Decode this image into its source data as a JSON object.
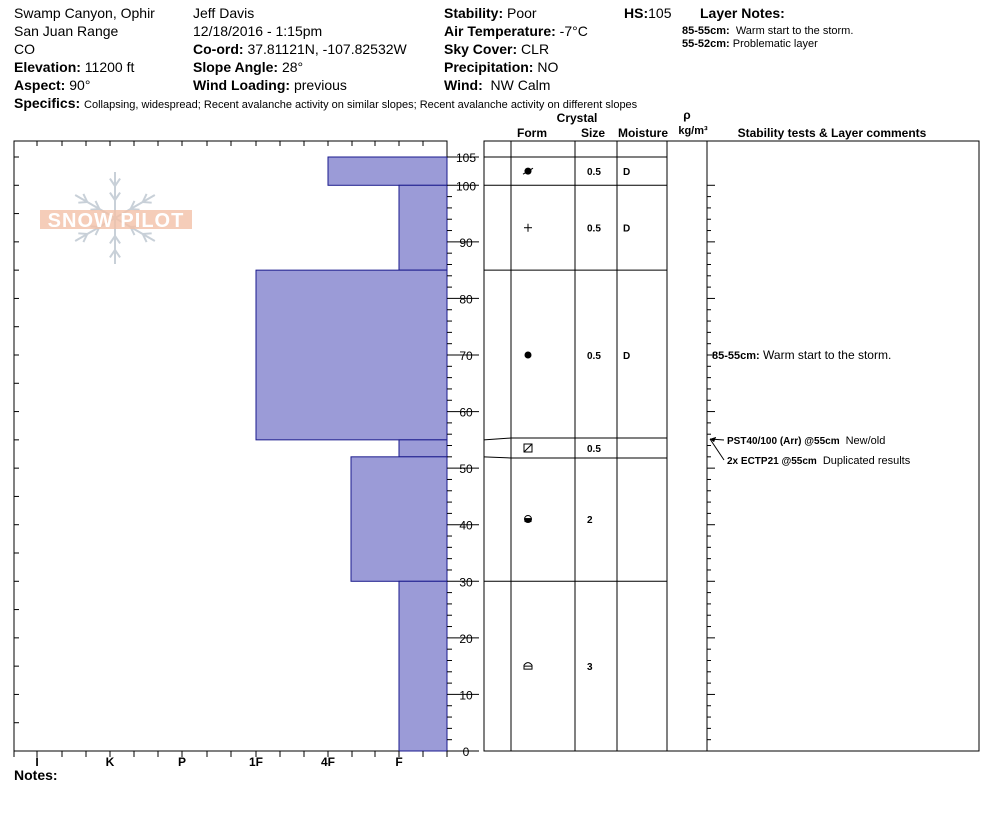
{
  "site": {
    "location": "Swamp Canyon, Ophir",
    "range": "San Juan Range",
    "state": "CO",
    "elevation_label": "Elevation:",
    "elevation": "11200 ft",
    "aspect_label": "Aspect:",
    "aspect": "90°"
  },
  "observer": {
    "name": "Jeff Davis",
    "datetime": "12/18/2016 - 1:15pm",
    "coord_label": "Co-ord:",
    "coord": "37.81121N, -107.82532W",
    "slope_label": "Slope Angle:",
    "slope": "28°",
    "wind_loading_label": "Wind Loading:",
    "wind_loading": "previous"
  },
  "conditions": {
    "stability_label": "Stability:",
    "stability": "Poor",
    "air_temp_label": "Air Temperature:",
    "air_temp": "-7°C",
    "sky_label": "Sky Cover:",
    "sky": "CLR",
    "precip_label": "Precipitation:",
    "precip": "NO",
    "wind_label": "Wind:",
    "wind": "NW Calm",
    "hs_label": "HS:",
    "hs": "105"
  },
  "layer_notes": {
    "title": "Layer Notes:",
    "items": [
      {
        "range": "85-55cm:",
        "text": "Warm start to the storm."
      },
      {
        "range": "55-52cm:",
        "text": "Problematic layer"
      }
    ]
  },
  "specifics": {
    "label": "Specifics:",
    "text": "Collapsing, widespread;  Recent avalanche activity on similar slopes; Recent avalanche activity on different slopes"
  },
  "columns": {
    "crystal": "Crystal",
    "form": "Form",
    "size": "Size",
    "moisture": "Moisture",
    "rho": "ρ",
    "density_unit": "kg/m³",
    "comments": "Stability tests & Layer comments"
  },
  "notes_label": "Notes:",
  "logo_text": "SNOW PILOT",
  "colors": {
    "bar": "#9b9bd7",
    "bar_stroke": "#1a1a8c",
    "logo": "#f2c0a8"
  },
  "chart_data": {
    "type": "bar",
    "orientation": "horizontal",
    "y_unit": "cm",
    "ylim": [
      0,
      105
    ],
    "y_ticks": [
      0,
      10,
      20,
      30,
      40,
      50,
      60,
      70,
      80,
      90,
      100,
      105
    ],
    "hardness_scale": [
      "I",
      "K",
      "P",
      "1F",
      "4F",
      "F"
    ],
    "layers": [
      {
        "top": 105,
        "bottom": 100,
        "hardness": "4F",
        "form": "decomposing",
        "size": "0.5",
        "moisture": "D"
      },
      {
        "top": 100,
        "bottom": 85,
        "hardness": "F",
        "form": "new snow",
        "size": "0.5",
        "moisture": "D"
      },
      {
        "top": 85,
        "bottom": 55,
        "hardness": "1F",
        "form": "rounded",
        "size": "0.5",
        "moisture": "D"
      },
      {
        "top": 55,
        "bottom": 52,
        "hardness": "F",
        "form": "surface hoar",
        "size": "0.5",
        "moisture": ""
      },
      {
        "top": 52,
        "bottom": 30,
        "hardness": "4F-",
        "form": "faceted rounding",
        "size": "2",
        "moisture": ""
      },
      {
        "top": 30,
        "bottom": 0,
        "hardness": "F",
        "form": "depth hoar",
        "size": "3",
        "moisture": ""
      }
    ],
    "comments": [
      {
        "depth": 70,
        "range": "85-55cm:",
        "text": "Warm start to the storm."
      }
    ],
    "tests": [
      {
        "depth": 55,
        "code": "PST40/100 (Arr) @55cm",
        "comment": "New/old"
      },
      {
        "depth": 55,
        "code": "2x ECTP21 @55cm",
        "comment": "Duplicated results"
      }
    ]
  }
}
